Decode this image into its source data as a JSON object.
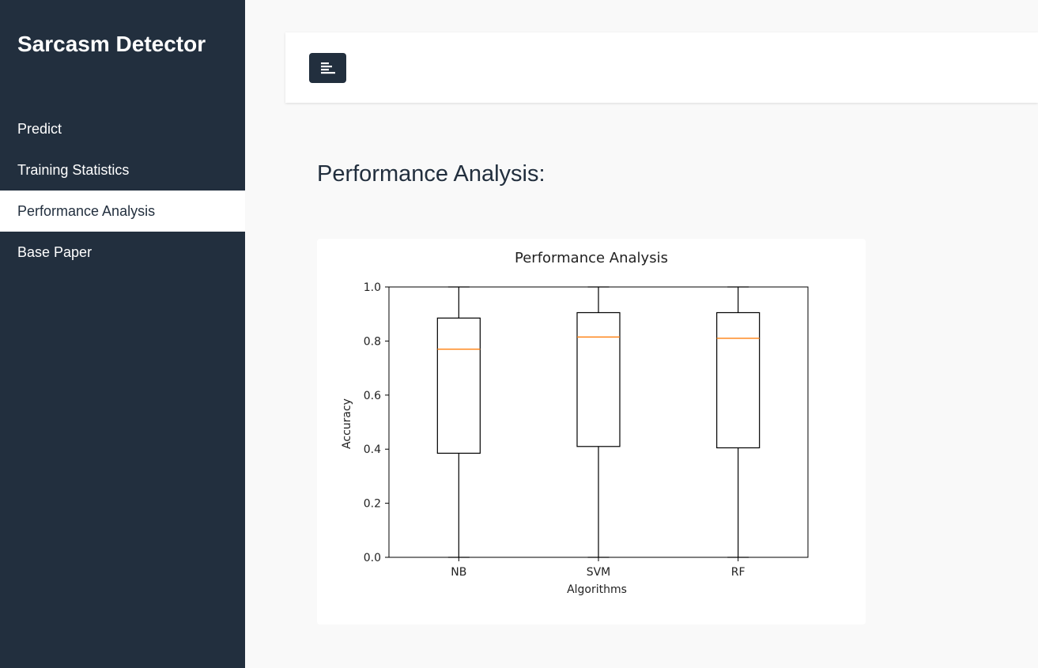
{
  "sidebar": {
    "brand": "Sarcasm Detector",
    "items": [
      {
        "label": "Predict",
        "active": false
      },
      {
        "label": "Training Statistics",
        "active": false
      },
      {
        "label": "Performance Analysis",
        "active": true
      },
      {
        "label": "Base Paper",
        "active": false
      }
    ]
  },
  "header": {
    "toggle_icon": "align-left-icon"
  },
  "main": {
    "title": "Performance Analysis:"
  },
  "colors": {
    "sidebar_bg": "#222f3e",
    "median_line": "#ff7f0e"
  },
  "chart_data": {
    "type": "boxplot",
    "title": "Performance Analysis",
    "xlabel": "Algorithms",
    "ylabel": "Accuracy",
    "ylim": [
      0,
      1
    ],
    "yticks": [
      "0.0",
      "0.2",
      "0.4",
      "0.6",
      "0.8",
      "1.0"
    ],
    "categories": [
      "NB",
      "SVM",
      "RF"
    ],
    "boxes": [
      {
        "name": "NB",
        "min": 0.0,
        "q1": 0.385,
        "median": 0.77,
        "q3": 0.885,
        "max": 1.0
      },
      {
        "name": "SVM",
        "min": 0.0,
        "q1": 0.41,
        "median": 0.815,
        "q3": 0.905,
        "max": 1.0
      },
      {
        "name": "RF",
        "min": 0.0,
        "q1": 0.405,
        "median": 0.81,
        "q3": 0.905,
        "max": 1.0
      }
    ],
    "grid": false
  }
}
